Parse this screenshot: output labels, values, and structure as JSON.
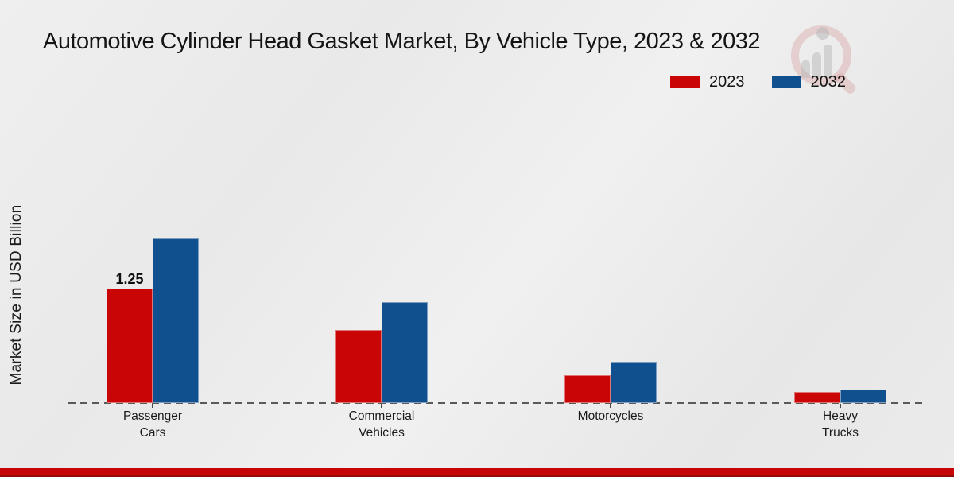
{
  "title": "Automotive Cylinder Head Gasket Market, By Vehicle Type, 2023 & 2032",
  "y_axis_label": "Market Size in USD Billion",
  "legend": {
    "items": [
      {
        "label": "2023",
        "color": "#c90505"
      },
      {
        "label": "2032",
        "color": "#11508f"
      }
    ]
  },
  "colors": {
    "series_2023": "#c90505",
    "series_2032": "#11508f",
    "baseline": "#5a5a5a",
    "footer_band_top": "#c60606",
    "footer_band_bottom": "#940909",
    "background": "#eaeaea",
    "text": "#141414"
  },
  "watermark_icon": "market-research-magnifier-logo",
  "chart_data": {
    "type": "bar",
    "categories": [
      "Passenger Cars",
      "Commercial Vehicles",
      "Motorcycles",
      "Heavy Trucks"
    ],
    "series": [
      {
        "name": "2023",
        "color": "#c90505",
        "values": [
          1.25,
          0.8,
          0.3,
          0.12
        ]
      },
      {
        "name": "2032",
        "color": "#11508f",
        "values": [
          1.8,
          1.1,
          0.45,
          0.15
        ]
      }
    ],
    "data_labels": [
      {
        "category_index": 0,
        "series_index": 0,
        "text": "1.25"
      }
    ],
    "title": "Automotive Cylinder Head Gasket Market, By Vehicle Type, 2023 & 2032",
    "xlabel": "",
    "ylabel": "Market Size in USD Billion",
    "ylim": [
      0,
      1.9
    ],
    "grid": false,
    "legend_position": "top-right",
    "baseline_style": "dashed"
  }
}
